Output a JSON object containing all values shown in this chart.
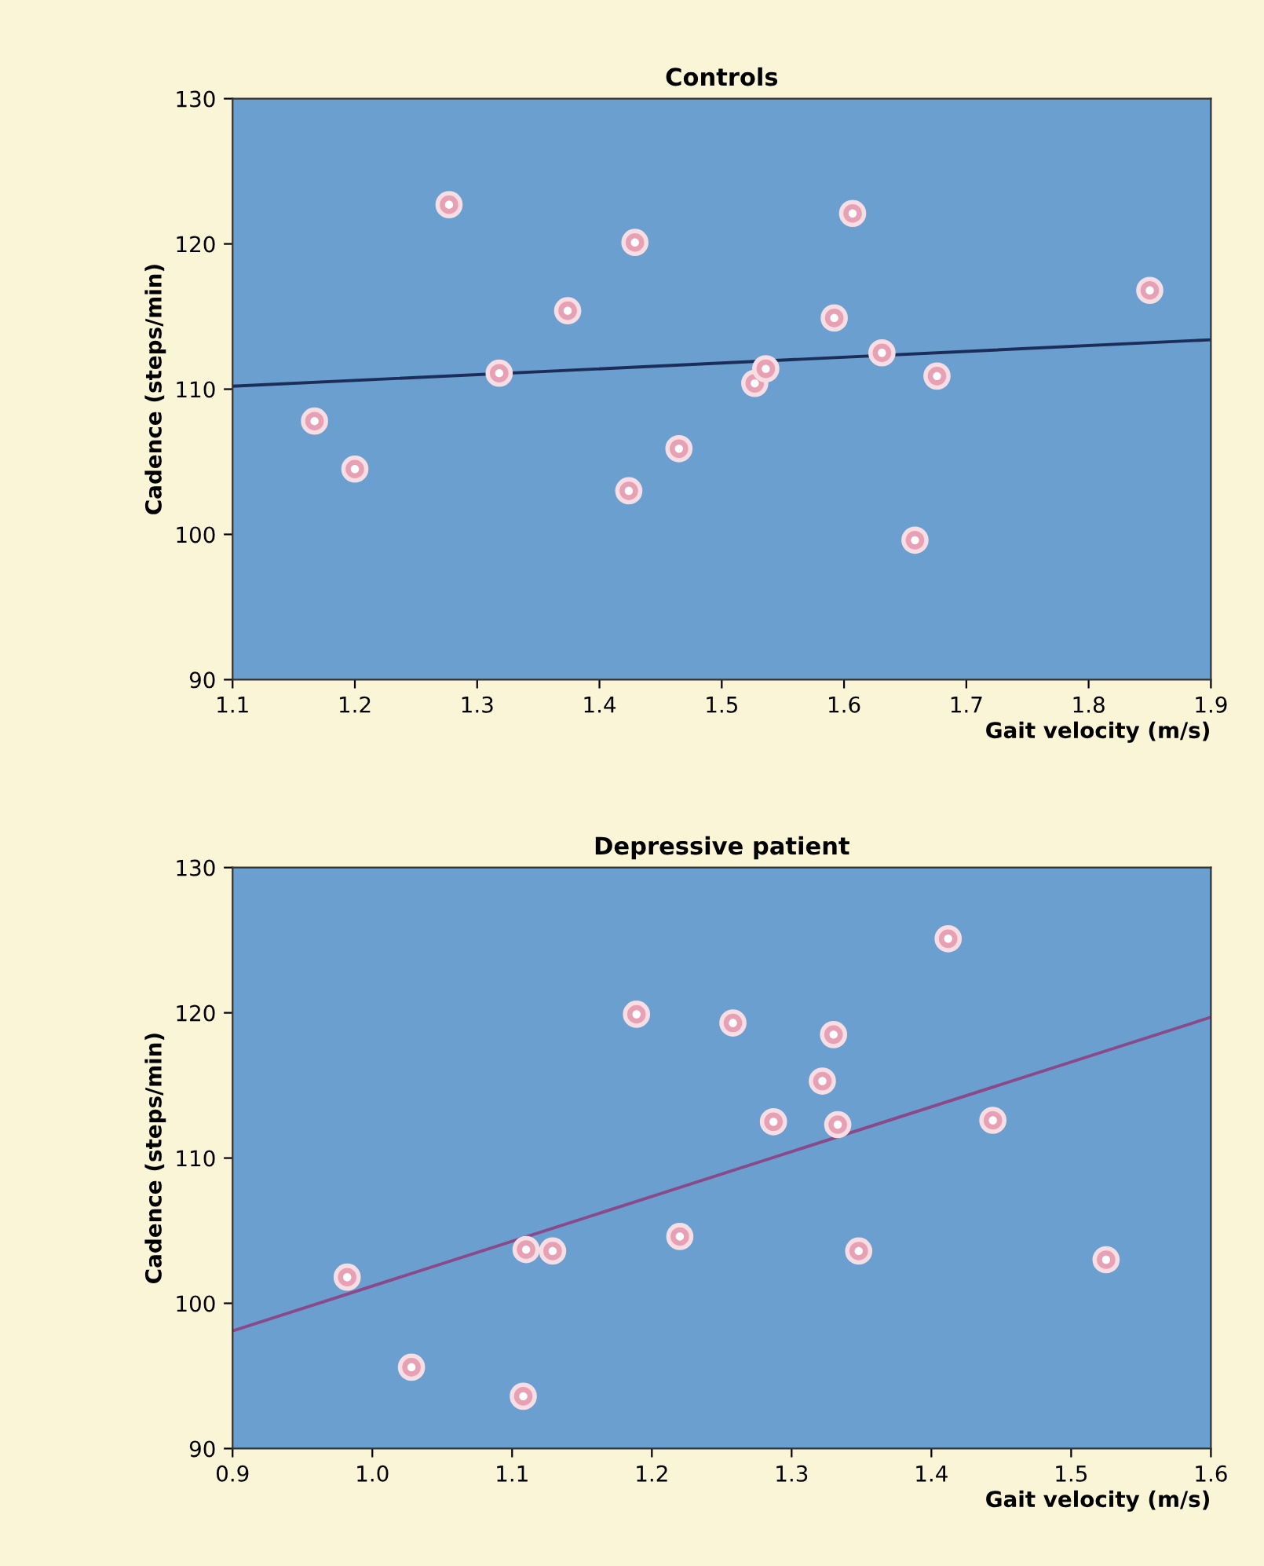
{
  "chart_data": [
    {
      "type": "scatter",
      "title": "Controls",
      "xlabel": "Gait velocity (m/s)",
      "ylabel": "Cadence (steps/min)",
      "xlim": [
        1.1,
        1.9
      ],
      "xticks": [
        1.1,
        1.2,
        1.3,
        1.4,
        1.5,
        1.6,
        1.7,
        1.8,
        1.9
      ],
      "ylim": [
        90,
        130
      ],
      "yticks": [
        90,
        100,
        110,
        120,
        130
      ],
      "grid": false,
      "legend": false,
      "series": [
        {
          "marker": "circle",
          "color": "#e8a0b4",
          "x": [
            1.167,
            1.2,
            1.277,
            1.318,
            1.374,
            1.429,
            1.424,
            1.465,
            1.527,
            1.536,
            1.607,
            1.592,
            1.631,
            1.676,
            1.658,
            1.85
          ],
          "values": [
            107.8,
            104.5,
            122.7,
            111.1,
            115.4,
            120.1,
            103.0,
            105.9,
            110.4,
            111.4,
            122.1,
            114.9,
            112.5,
            110.9,
            99.6,
            116.8
          ]
        },
        {
          "type": "line",
          "color": "#1c2d5a",
          "x": [
            1.1,
            1.9
          ],
          "values": [
            110.2,
            113.4
          ]
        }
      ]
    },
    {
      "type": "scatter",
      "title": "Depressive patient",
      "xlabel": "Gait velocity (m/s)",
      "ylabel": "Cadence (steps/min)",
      "xlim": [
        0.9,
        1.6
      ],
      "xticks": [
        0.9,
        {
          "value": 1.0,
          "label": "1.0"
        },
        1.1,
        1.2,
        1.3,
        1.4,
        1.5,
        1.6
      ],
      "ylim": [
        90,
        130
      ],
      "yticks": [
        90,
        100,
        110,
        120,
        130
      ],
      "grid": false,
      "legend": false,
      "series": [
        {
          "marker": "circle",
          "color": "#e8a0b4",
          "x": [
            0.982,
            1.028,
            1.108,
            1.11,
            1.129,
            1.22,
            1.189,
            1.258,
            1.287,
            1.322,
            1.33,
            1.333,
            1.348,
            1.412,
            1.444,
            1.525
          ],
          "values": [
            101.8,
            95.6,
            93.6,
            103.7,
            103.6,
            104.6,
            119.9,
            119.3,
            112.5,
            115.3,
            118.5,
            112.3,
            103.6,
            125.1,
            112.6,
            103.0
          ]
        },
        {
          "type": "line",
          "color": "#8a4a8a",
          "x": [
            0.9,
            1.6
          ],
          "values": [
            98.1,
            119.7
          ]
        }
      ]
    }
  ]
}
